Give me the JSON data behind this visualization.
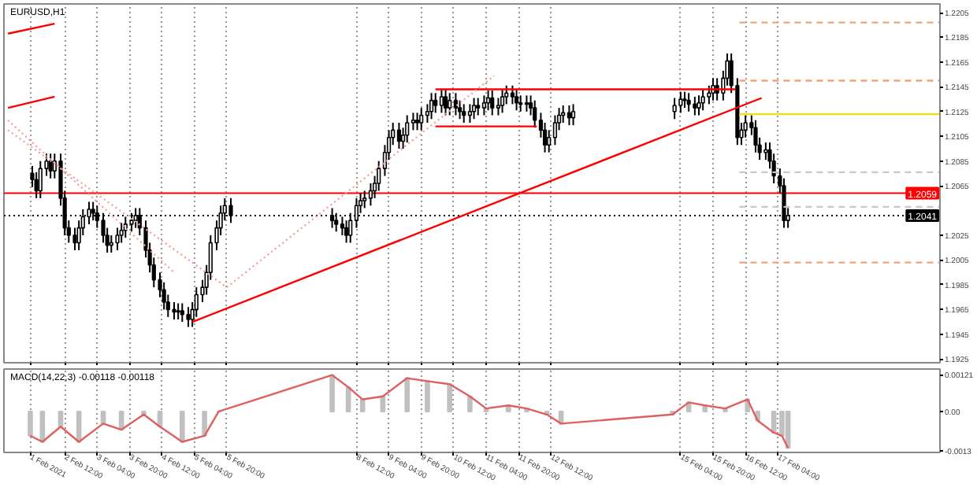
{
  "chart_data": [
    {
      "type": "candlestick",
      "title": "EURUSD,H1",
      "color": "#000000",
      "grid": "x",
      "tick_labels": "y",
      "xlim": [
        "2021-02-01T06:00",
        "2021-02-20T12:00"
      ],
      "ylim": [
        1.1922,
        1.2212
      ],
      "xticks": [
        {
          "value": "2021-02-01T19:00",
          "label": null
        },
        {
          "value": "2021-02-02T12:00",
          "label": null
        },
        {
          "value": "2021-02-03T04:00",
          "label": null
        },
        {
          "value": "2021-02-03T20:00",
          "label": null
        },
        {
          "value": "2021-02-04T12:00",
          "label": null
        },
        {
          "value": "2021-02-05T04:00",
          "label": null
        },
        {
          "value": "2021-02-05T20:00",
          "label": null
        },
        {
          "value": "2021-02-08T12:00",
          "label": null
        },
        {
          "value": "2021-02-09T04:00",
          "label": null
        },
        {
          "value": "2021-02-09T20:00",
          "label": null
        },
        {
          "value": "2021-02-10T12:00",
          "label": null
        },
        {
          "value": "2021-02-11T04:00",
          "label": null
        },
        {
          "value": "2021-02-11T20:00",
          "label": null
        },
        {
          "value": "2021-02-12T12:00",
          "label": null
        },
        {
          "value": "2021-02-15T04:00",
          "label": null
        },
        {
          "value": "2021-02-15T20:00",
          "label": null
        },
        {
          "value": "2021-02-16T12:00",
          "label": null
        },
        {
          "value": "2021-02-17T04:00",
          "label": null
        }
      ],
      "yticks": [
        1.1925,
        1.1945,
        1.1965,
        1.1985,
        1.2005,
        1.2025,
        1.2065,
        1.2085,
        1.2105,
        1.2125,
        1.2145,
        1.2165,
        1.2185,
        1.2205
      ],
      "x": [
        "2021-02-01T20:00",
        "2021-02-01T22:00",
        "2021-02-02T00:00",
        "2021-02-02T03:00",
        "2021-02-02T05:00",
        "2021-02-02T07:00",
        "2021-02-02T10:00",
        "2021-02-02T12:00",
        "2021-02-02T14:00",
        "2021-02-02T17:00",
        "2021-02-02T19:00",
        "2021-02-02T21:00",
        "2021-02-03T00:00",
        "2021-02-03T02:00",
        "2021-02-03T04:00",
        "2021-02-03T07:00",
        "2021-02-03T09:00",
        "2021-02-03T11:00",
        "2021-02-03T14:00",
        "2021-02-03T16:00",
        "2021-02-03T18:00",
        "2021-02-03T21:00",
        "2021-02-03T23:00",
        "2021-02-04T01:00",
        "2021-02-04T04:00",
        "2021-02-04T06:00",
        "2021-02-04T08:00",
        "2021-02-04T11:00",
        "2021-02-04T13:00",
        "2021-02-04T15:00",
        "2021-02-04T18:00",
        "2021-02-04T20:00",
        "2021-02-04T22:00",
        "2021-02-05T01:00",
        "2021-02-05T03:00",
        "2021-02-05T05:00",
        "2021-02-05T08:00",
        "2021-02-05T10:00",
        "2021-02-05T12:00",
        "2021-02-05T15:00",
        "2021-02-05T17:00",
        "2021-02-05T19:00",
        "2021-02-05T22:00",
        "2021-02-08T00:00",
        "2021-02-08T02:00",
        "2021-02-08T05:00",
        "2021-02-08T07:00",
        "2021-02-08T09:00",
        "2021-02-08T12:00",
        "2021-02-08T14:00",
        "2021-02-08T16:00",
        "2021-02-08T19:00",
        "2021-02-08T21:00",
        "2021-02-08T23:00",
        "2021-02-09T02:00",
        "2021-02-09T04:00",
        "2021-02-09T06:00",
        "2021-02-09T09:00",
        "2021-02-09T11:00",
        "2021-02-09T13:00",
        "2021-02-09T16:00",
        "2021-02-09T18:00",
        "2021-02-09T20:00",
        "2021-02-09T23:00",
        "2021-02-10T01:00",
        "2021-02-10T03:00",
        "2021-02-10T06:00",
        "2021-02-10T08:00",
        "2021-02-10T10:00",
        "2021-02-10T13:00",
        "2021-02-10T15:00",
        "2021-02-10T17:00",
        "2021-02-10T20:00",
        "2021-02-10T22:00",
        "2021-02-11T00:00",
        "2021-02-11T03:00",
        "2021-02-11T05:00",
        "2021-02-11T07:00",
        "2021-02-11T10:00",
        "2021-02-11T12:00",
        "2021-02-11T14:00",
        "2021-02-11T17:00",
        "2021-02-11T19:00",
        "2021-02-11T21:00",
        "2021-02-12T00:00",
        "2021-02-12T02:00",
        "2021-02-12T04:00",
        "2021-02-12T07:00",
        "2021-02-12T09:00",
        "2021-02-12T11:00",
        "2021-02-12T14:00",
        "2021-02-12T16:00",
        "2021-02-12T18:00",
        "2021-02-12T21:00",
        "2021-02-12T23:00",
        "2021-02-15T01:00",
        "2021-02-15T04:00",
        "2021-02-15T06:00",
        "2021-02-15T08:00",
        "2021-02-15T11:00",
        "2021-02-15T13:00",
        "2021-02-15T15:00",
        "2021-02-15T18:00",
        "2021-02-15T20:00",
        "2021-02-15T22:00",
        "2021-02-16T01:00",
        "2021-02-16T03:00",
        "2021-02-16T05:00",
        "2021-02-16T08:00",
        "2021-02-16T10:00",
        "2021-02-16T12:00",
        "2021-02-16T15:00",
        "2021-02-16T17:00",
        "2021-02-16T19:00",
        "2021-02-16T22:00",
        "2021-02-17T00:00",
        "2021-02-17T02:00",
        "2021-02-17T05:00",
        "2021-02-17T07:00",
        "2021-02-17T09:00"
      ],
      "ohlc": [
        [
          1.2075,
          1.2081,
          1.2064,
          1.207
        ],
        [
          1.207,
          1.2076,
          1.2055,
          1.2061
        ],
        [
          1.2061,
          1.2085,
          1.2055,
          1.2079
        ],
        [
          1.2079,
          1.2091,
          1.2073,
          1.2085
        ],
        [
          1.2085,
          1.2091,
          1.2071,
          1.2077
        ],
        [
          1.2077,
          1.2091,
          1.2071,
          1.2085
        ],
        [
          1.2085,
          1.2091,
          1.2049,
          1.2055
        ],
        [
          1.2055,
          1.2061,
          1.2025,
          1.2031
        ],
        [
          1.2031,
          1.2037,
          1.2019,
          1.2025
        ],
        [
          1.2025,
          1.2031,
          1.2013,
          1.2019
        ],
        [
          1.2019,
          1.2037,
          1.2013,
          1.2031
        ],
        [
          1.2031,
          1.2046,
          1.2025,
          1.204
        ],
        [
          1.204,
          1.2052,
          1.2034,
          1.2046
        ],
        [
          1.2046,
          1.2052,
          1.2037,
          1.2043
        ],
        [
          1.2043,
          1.2049,
          1.2031,
          1.2037
        ],
        [
          1.2037,
          1.2043,
          1.2019,
          1.2025
        ],
        [
          1.2025,
          1.2031,
          1.2011,
          1.2017
        ],
        [
          1.2017,
          1.2025,
          1.2011,
          1.2019
        ],
        [
          1.2019,
          1.2031,
          1.2013,
          1.2025
        ],
        [
          1.2025,
          1.2035,
          1.2019,
          1.2029
        ],
        [
          1.2029,
          1.204,
          1.2023,
          1.2034
        ],
        [
          1.2034,
          1.2043,
          1.2028,
          1.2037
        ],
        [
          1.2037,
          1.2047,
          1.2031,
          1.2041
        ],
        [
          1.2041,
          1.2047,
          1.2025,
          1.2031
        ],
        [
          1.2031,
          1.2037,
          1.2007,
          1.2013
        ],
        [
          1.2013,
          1.2019,
          1.1995,
          1.2001
        ],
        [
          1.2001,
          1.2007,
          1.1983,
          1.1989
        ],
        [
          1.1989,
          1.1995,
          1.1975,
          1.1981
        ],
        [
          1.1981,
          1.1987,
          1.1965,
          1.1971
        ],
        [
          1.1971,
          1.1977,
          1.1959,
          1.1965
        ],
        [
          1.1965,
          1.1971,
          1.1957,
          1.1963
        ],
        [
          1.1963,
          1.197,
          1.1957,
          1.1964
        ],
        [
          1.1964,
          1.197,
          1.1955,
          1.1961
        ],
        [
          1.1961,
          1.1967,
          1.1951,
          1.1957
        ],
        [
          1.1957,
          1.1971,
          1.1951,
          1.1965
        ],
        [
          1.1965,
          1.1983,
          1.1959,
          1.1977
        ],
        [
          1.1977,
          1.1989,
          1.1971,
          1.1983
        ],
        [
          1.1983,
          1.2001,
          1.1977,
          1.1995
        ],
        [
          1.1995,
          1.2025,
          1.1989,
          1.2019
        ],
        [
          1.2019,
          1.2037,
          1.2013,
          1.2031
        ],
        [
          1.2031,
          1.2049,
          1.2025,
          1.2043
        ],
        [
          1.2043,
          1.2055,
          1.2037,
          1.2049
        ],
        [
          1.2049,
          1.2055,
          1.2035,
          1.2041
        ],
        [
          1.2041,
          1.2047,
          1.2031,
          1.2037
        ],
        [
          1.2037,
          1.2043,
          1.2028,
          1.2034
        ],
        [
          1.2034,
          1.204,
          1.2025,
          1.2031
        ],
        [
          1.2031,
          1.2037,
          1.2019,
          1.2025
        ],
        [
          1.2025,
          1.2043,
          1.2019,
          1.2037
        ],
        [
          1.2037,
          1.2055,
          1.2031,
          1.2049
        ],
        [
          1.2049,
          1.2059,
          1.2043,
          1.2053
        ],
        [
          1.2053,
          1.2061,
          1.2047,
          1.2055
        ],
        [
          1.2055,
          1.2067,
          1.2049,
          1.2061
        ],
        [
          1.2061,
          1.2073,
          1.2055,
          1.2067
        ],
        [
          1.2067,
          1.2085,
          1.2061,
          1.2079
        ],
        [
          1.2079,
          1.2098,
          1.2073,
          1.2092
        ],
        [
          1.2092,
          1.211,
          1.2086,
          1.2104
        ],
        [
          1.2104,
          1.2116,
          1.2098,
          1.211
        ],
        [
          1.211,
          1.2116,
          1.2095,
          1.2101
        ],
        [
          1.2101,
          1.2112,
          1.2095,
          1.2106
        ],
        [
          1.2106,
          1.2122,
          1.21,
          1.2116
        ],
        [
          1.2116,
          1.2124,
          1.211,
          1.2118
        ],
        [
          1.2118,
          1.2124,
          1.211,
          1.2116
        ],
        [
          1.2116,
          1.2128,
          1.211,
          1.2122
        ],
        [
          1.2122,
          1.2131,
          1.2116,
          1.2125
        ],
        [
          1.2125,
          1.214,
          1.2119,
          1.2134
        ],
        [
          1.2134,
          1.214,
          1.2124,
          1.213
        ],
        [
          1.213,
          1.2143,
          1.2124,
          1.2137
        ],
        [
          1.2137,
          1.2143,
          1.2122,
          1.2128
        ],
        [
          1.2128,
          1.214,
          1.2122,
          1.2134
        ],
        [
          1.2134,
          1.214,
          1.2122,
          1.2128
        ],
        [
          1.2128,
          1.2134,
          1.2119,
          1.2125
        ],
        [
          1.2125,
          1.2131,
          1.2116,
          1.2122
        ],
        [
          1.2122,
          1.2131,
          1.2116,
          1.2125
        ],
        [
          1.2125,
          1.2136,
          1.2119,
          1.213
        ],
        [
          1.213,
          1.2136,
          1.2122,
          1.2128
        ],
        [
          1.2128,
          1.2138,
          1.2122,
          1.2132
        ],
        [
          1.2132,
          1.2142,
          1.2126,
          1.2136
        ],
        [
          1.2136,
          1.2142,
          1.2122,
          1.2128
        ],
        [
          1.2128,
          1.2136,
          1.2122,
          1.213
        ],
        [
          1.213,
          1.2143,
          1.2124,
          1.2137
        ],
        [
          1.2137,
          1.2146,
          1.2131,
          1.214
        ],
        [
          1.214,
          1.2146,
          1.2131,
          1.2137
        ],
        [
          1.2137,
          1.2143,
          1.2126,
          1.2132
        ],
        [
          1.2132,
          1.2138,
          1.2125,
          1.2131
        ],
        [
          1.2131,
          1.2138,
          1.2125,
          1.2132
        ],
        [
          1.2132,
          1.2138,
          1.2122,
          1.2128
        ],
        [
          1.2128,
          1.2134,
          1.2112,
          1.2118
        ],
        [
          1.2118,
          1.2124,
          1.2104,
          1.211
        ],
        [
          1.211,
          1.2116,
          1.2092,
          1.2098
        ],
        [
          1.2098,
          1.211,
          1.2092,
          1.2104
        ],
        [
          1.2104,
          1.2122,
          1.2098,
          1.2116
        ],
        [
          1.2116,
          1.2128,
          1.211,
          1.2122
        ],
        [
          1.2122,
          1.213,
          1.2116,
          1.2124
        ],
        [
          1.2124,
          1.213,
          1.2114,
          1.212
        ],
        [
          1.212,
          1.2131,
          1.2114,
          1.2125
        ],
        [
          1.2125,
          1.2136,
          1.2119,
          1.213
        ],
        [
          1.213,
          1.2141,
          1.2124,
          1.2135
        ],
        [
          1.2135,
          1.2141,
          1.2128,
          1.2134
        ],
        [
          1.2134,
          1.214,
          1.2125,
          1.2131
        ],
        [
          1.2131,
          1.2137,
          1.2122,
          1.2128
        ],
        [
          1.2128,
          1.2138,
          1.2122,
          1.2132
        ],
        [
          1.2132,
          1.2143,
          1.2126,
          1.2137
        ],
        [
          1.2137,
          1.2146,
          1.2131,
          1.214
        ],
        [
          1.214,
          1.2152,
          1.2134,
          1.2146
        ],
        [
          1.2146,
          1.2152,
          1.2134,
          1.214
        ],
        [
          1.214,
          1.2158,
          1.2134,
          1.2152
        ],
        [
          1.2152,
          1.2172,
          1.2146,
          1.2166
        ],
        [
          1.2166,
          1.2172,
          1.214,
          1.2146
        ],
        [
          1.2146,
          1.2152,
          1.2098,
          1.2104
        ],
        [
          1.2104,
          1.2116,
          1.2098,
          1.211
        ],
        [
          1.211,
          1.2122,
          1.2104,
          1.2116
        ],
        [
          1.2116,
          1.2122,
          1.2106,
          1.2112
        ],
        [
          1.2112,
          1.2118,
          1.2092,
          1.2098
        ],
        [
          1.2098,
          1.2104,
          1.2086,
          1.2092
        ],
        [
          1.2092,
          1.21,
          1.2086,
          1.2094
        ],
        [
          1.2094,
          1.21,
          1.2079,
          1.2085
        ],
        [
          1.2085,
          1.2091,
          1.2067,
          1.2073
        ],
        [
          1.2073,
          1.2079,
          1.2059,
          1.2065
        ],
        [
          1.2065,
          1.2071,
          1.2031,
          1.2037
        ],
        [
          1.2037,
          1.2047,
          1.2031,
          1.2041
        ]
      ],
      "series": [
        {
          "type": "line",
          "color": "#ff0000",
          "line_style": "solid",
          "x": [
            "2021-02-05T03:00",
            "2021-02-16T20:00"
          ],
          "values": [
            1.1955,
            1.2136
          ]
        },
        {
          "type": "line",
          "color": "#ff0000",
          "line_style": "solid",
          "x": [
            "2021-02-10T03:00",
            "2021-02-16T07:00"
          ],
          "values": [
            1.2143,
            1.2143
          ]
        },
        {
          "type": "line",
          "color": "#ff0000",
          "line_style": "solid",
          "x": [
            "2021-02-10T03:00",
            "2021-02-12T05:00"
          ],
          "values": [
            1.2113,
            1.2113
          ]
        },
        {
          "type": "line",
          "color": "#ff0000",
          "line_style": "solid",
          "x": [
            "2021-02-01T08:00",
            "2021-02-02T07:00"
          ],
          "values": [
            1.2188,
            1.2196
          ]
        },
        {
          "type": "line",
          "color": "#ff0000",
          "line_style": "solid",
          "x": [
            "2021-02-01T08:00",
            "2021-02-02T07:00"
          ],
          "values": [
            1.2128,
            1.2137
          ]
        },
        {
          "type": "line",
          "color": "#f4a0a0",
          "line_style": "dotted",
          "x": [
            "2021-02-01T08:00",
            "2021-02-04T18:00"
          ],
          "values": [
            1.2118,
            1.1995
          ]
        },
        {
          "type": "line",
          "color": "#f4a0a0",
          "line_style": "dotted",
          "x": [
            "2021-02-01T08:00",
            "2021-02-05T20:00"
          ],
          "values": [
            1.211,
            1.1983
          ]
        },
        {
          "type": "line",
          "color": "#f4a0a0",
          "line_style": "dotted",
          "x": [
            "2021-02-05T20:00",
            "2021-02-11T08:00"
          ],
          "values": [
            1.1983,
            1.2154
          ]
        },
        {
          "type": "line",
          "color": "#f5a27a",
          "line_style": "dashed",
          "x": [
            "2021-02-16T09:00",
            "2021-02-20T12:00"
          ],
          "values": [
            1.2197,
            1.2197
          ]
        },
        {
          "type": "line",
          "color": "#f5a27a",
          "line_style": "dashed",
          "x": [
            "2021-02-16T09:00",
            "2021-02-20T12:00"
          ],
          "values": [
            1.215,
            1.215
          ]
        },
        {
          "type": "line",
          "color": "#e8e020",
          "line_style": "solid",
          "x": [
            "2021-02-16T09:00",
            "2021-02-20T12:00"
          ],
          "values": [
            1.2123,
            1.2123
          ]
        },
        {
          "type": "line",
          "color": "#c8c8c8",
          "line_style": "dashed",
          "x": [
            "2021-02-16T09:00",
            "2021-02-20T12:00"
          ],
          "values": [
            1.2076,
            1.2076
          ]
        },
        {
          "type": "line",
          "color": "#c8c8c8",
          "line_style": "dashed",
          "x": [
            "2021-02-16T09:00",
            "2021-02-20T12:00"
          ],
          "values": [
            1.2048,
            1.2048
          ]
        },
        {
          "type": "line",
          "color": "#f5a27a",
          "line_style": "dashed",
          "x": [
            "2021-02-16T09:00",
            "2021-02-20T12:00"
          ],
          "values": [
            1.2003,
            1.2003
          ]
        }
      ],
      "ref_lines": [
        {
          "axis": "y",
          "value": 1.2059,
          "label": "1.2059",
          "color": "#ff0000",
          "line_style": "solid"
        },
        {
          "axis": "y",
          "value": 1.2041,
          "label": "1.2041",
          "color": "#000000",
          "line_style": "dotted"
        }
      ]
    },
    {
      "type": "bar",
      "title": "MACD(14,22,3) -0.00118 -0.00118",
      "color": "#c0c0c0",
      "grid": "x",
      "xlim": [
        "2021-02-01T06:00",
        "2021-02-20T12:00"
      ],
      "ylim": [
        -0.00135,
        0.0014
      ],
      "xticks": [
        {
          "value": "2021-02-01T19:00",
          "label": "1 Feb 2021"
        },
        {
          "value": "2021-02-02T12:00",
          "label": "2 Feb 12:00"
        },
        {
          "value": "2021-02-03T04:00",
          "label": "3 Feb 04:00"
        },
        {
          "value": "2021-02-03T20:00",
          "label": "3 Feb 20:00"
        },
        {
          "value": "2021-02-04T12:00",
          "label": "4 Feb 12:00"
        },
        {
          "value": "2021-02-05T04:00",
          "label": "5 Feb 04:00"
        },
        {
          "value": "2021-02-05T20:00",
          "label": "5 Feb 20:00"
        },
        {
          "value": "2021-02-08T12:00",
          "label": "8 Feb 12:00"
        },
        {
          "value": "2021-02-09T04:00",
          "label": "9 Feb 04:00"
        },
        {
          "value": "2021-02-09T20:00",
          "label": "9 Feb 20:00"
        },
        {
          "value": "2021-02-10T12:00",
          "label": "10 Feb 12:00"
        },
        {
          "value": "2021-02-11T04:00",
          "label": "11 Feb 04:00"
        },
        {
          "value": "2021-02-11T20:00",
          "label": "11 Feb 20:00"
        },
        {
          "value": "2021-02-12T12:00",
          "label": "12 Feb 12:00"
        },
        {
          "value": "2021-02-15T04:00",
          "label": "15 Feb 04:00"
        },
        {
          "value": "2021-02-15T20:00",
          "label": "15 Feb 20:00"
        },
        {
          "value": "2021-02-16T12:00",
          "label": "16 Feb 12:00"
        },
        {
          "value": "2021-02-17T04:00",
          "label": "17 Feb 04:00"
        }
      ],
      "yticks": [
        -0.0013,
        {
          "value": 0,
          "label": "0.00"
        },
        0.00121
      ],
      "x": [
        "2021-02-01T19:00",
        "2021-02-02T01:00",
        "2021-02-02T10:00",
        "2021-02-02T19:00",
        "2021-02-03T07:00",
        "2021-02-03T16:00",
        "2021-02-04T03:00",
        "2021-02-04T11:00",
        "2021-02-04T22:00",
        "2021-02-05T09:00",
        "2021-02-05T16:00",
        "2021-02-08T00:00",
        "2021-02-08T08:00",
        "2021-02-08T15:00",
        "2021-02-09T01:00",
        "2021-02-09T13:00",
        "2021-02-09T23:00",
        "2021-02-10T10:00",
        "2021-02-10T20:00",
        "2021-02-11T04:00",
        "2021-02-11T15:00",
        "2021-02-12T00:00",
        "2021-02-12T10:00",
        "2021-02-12T17:00",
        "2021-02-15T00:00",
        "2021-02-15T08:00",
        "2021-02-15T16:00",
        "2021-02-16T02:00",
        "2021-02-16T13:00",
        "2021-02-16T18:00",
        "2021-02-17T02:00",
        "2021-02-17T06:00",
        "2021-02-17T09:00"
      ],
      "values": [
        -0.0008,
        -0.001,
        -0.0005,
        -0.001,
        -0.0004,
        -0.0006,
        -0.0001,
        -0.0005,
        -0.001,
        -0.0008,
        0,
        0.0012,
        0.0008,
        0.0004,
        0.0005,
        0.0011,
        0.001,
        0.0009,
        0.0005,
        0.0001,
        0.0002,
        0.0001,
        -0.0001,
        -0.0004,
        -0.0001,
        0.0003,
        0.0002,
        0.0001,
        0.0004,
        -0.0003,
        -0.0007,
        -0.0008,
        -0.0012
      ],
      "series": [
        {
          "type": "line",
          "color": "#e06060",
          "line_style": "solid",
          "x": [
            "2021-02-01T19:00",
            "2021-02-02T01:00",
            "2021-02-02T10:00",
            "2021-02-02T19:00",
            "2021-02-03T07:00",
            "2021-02-03T16:00",
            "2021-02-04T03:00",
            "2021-02-04T11:00",
            "2021-02-04T22:00",
            "2021-02-05T09:00",
            "2021-02-05T16:00",
            "2021-02-08T00:00",
            "2021-02-08T08:00",
            "2021-02-08T15:00",
            "2021-02-09T01:00",
            "2021-02-09T13:00",
            "2021-02-09T23:00",
            "2021-02-10T10:00",
            "2021-02-10T20:00",
            "2021-02-11T04:00",
            "2021-02-11T15:00",
            "2021-02-12T00:00",
            "2021-02-12T10:00",
            "2021-02-12T17:00",
            "2021-02-15T00:00",
            "2021-02-15T08:00",
            "2021-02-15T16:00",
            "2021-02-16T02:00",
            "2021-02-16T13:00",
            "2021-02-16T18:00",
            "2021-02-17T02:00",
            "2021-02-17T06:00",
            "2021-02-17T09:00"
          ],
          "values": [
            -0.0008,
            -0.001,
            -0.0005,
            -0.001,
            -0.0004,
            -0.0006,
            -0.0001,
            -0.0005,
            -0.001,
            -0.0008,
            0,
            0.0012,
            0.0008,
            0.0004,
            0.0005,
            0.0011,
            0.001,
            0.0009,
            0.0005,
            0.0001,
            0.0002,
            0.0001,
            -0.0001,
            -0.0004,
            -0.0001,
            0.0003,
            0.0002,
            0.0001,
            0.0004,
            -0.0003,
            -0.0007,
            -0.0008,
            -0.0012
          ]
        }
      ]
    }
  ]
}
